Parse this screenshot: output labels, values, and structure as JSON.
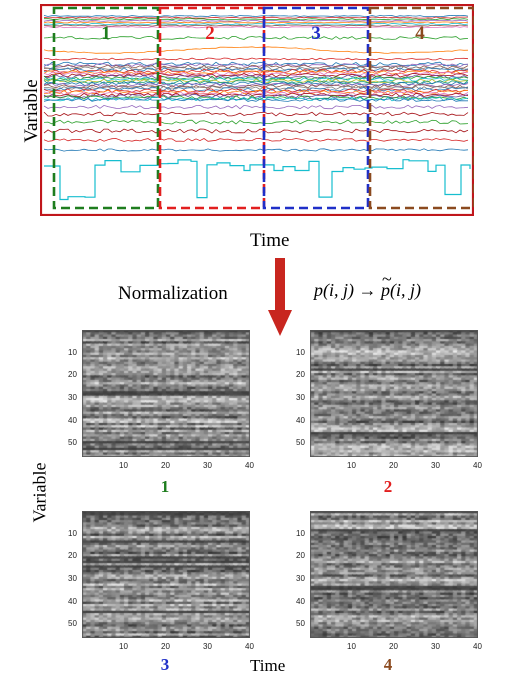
{
  "top_panel": {
    "ylabel": "Variable",
    "xlabel": "Time",
    "segments": [
      {
        "label": "1",
        "color": "#1e7d1e"
      },
      {
        "label": "2",
        "color": "#e21f1f"
      },
      {
        "label": "3",
        "color": "#1f2fc8"
      },
      {
        "label": "4",
        "color": "#8b4a1f"
      }
    ],
    "frame_color": "#c0161b"
  },
  "transform": {
    "left_label": "Normalization",
    "right_label_parts": [
      "p(i, j) → ",
      "p",
      "(i, j)"
    ],
    "arrow_color": "#c8261f"
  },
  "heatmaps": {
    "ylabel": "Variable",
    "xlabel": "Time",
    "y_ticks": [
      "10",
      "20",
      "30",
      "40",
      "50"
    ],
    "x_ticks": [
      "10",
      "20",
      "30",
      "40"
    ],
    "panels": [
      {
        "label": "1",
        "color": "#1e7d1e"
      },
      {
        "label": "2",
        "color": "#e21f1f"
      },
      {
        "label": "3",
        "color": "#1f2fc8"
      },
      {
        "label": "4",
        "color": "#8b4a1f"
      }
    ]
  }
}
